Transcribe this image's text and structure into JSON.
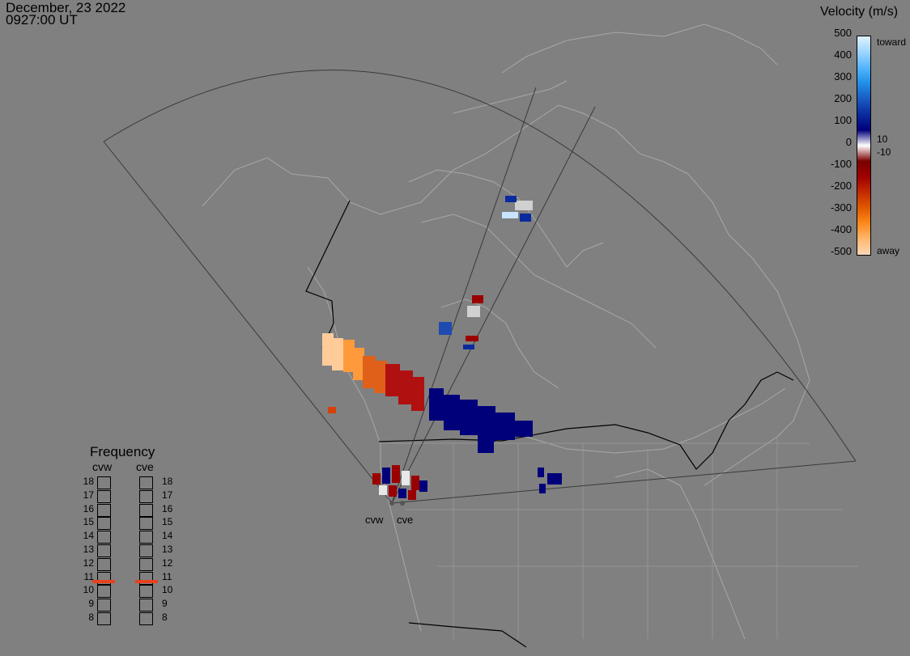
{
  "header": {
    "date": "December, 23 2022",
    "time": "0927:00 UT"
  },
  "legend": {
    "title": "Velocity (m/s)",
    "ticks": [
      "500",
      "400",
      "300",
      "200",
      "100",
      "0",
      "-100",
      "-200",
      "-300",
      "-400",
      "-500"
    ],
    "toward_label": "toward",
    "away_label": "away",
    "pos_threshold": "10",
    "neg_threshold": "-10",
    "colors": [
      "#e0f2ff",
      "#9fd6ff",
      "#55b5ff",
      "#1e8fe6",
      "#1a5bc4",
      "#0a2b9e",
      "#00007a",
      "#ffffff",
      "#7a0000",
      "#a00000",
      "#c42a00",
      "#e05a00",
      "#ff8a1c",
      "#ffb870",
      "#ffd8b8"
    ]
  },
  "frequency_panel": {
    "title": "Frequency",
    "columns": [
      "cvw",
      "cve"
    ],
    "values": [
      "18",
      "17",
      "16",
      "15",
      "14",
      "13",
      "12",
      "11",
      "10",
      "9",
      "8"
    ],
    "selected": {
      "cvw": "11",
      "cve": "11"
    }
  },
  "sites": [
    "cvw",
    "cve"
  ],
  "colors": {
    "background": "#808080",
    "land_outline": "#a8a8a8",
    "border": "#000000",
    "fov": "#3a3a3a",
    "freq_mark": "#e8401c"
  }
}
